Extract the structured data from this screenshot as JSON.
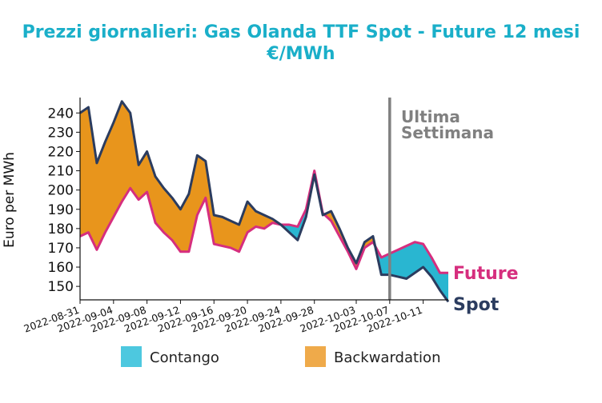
{
  "chart_data": {
    "type": "area",
    "title_line1": "Prezzi giornalieri: Gas Olanda TTF Spot - Future 12 mesi",
    "title_line2": "€/MWh",
    "ylabel": "Euro per MWh",
    "xlabel": "",
    "ylim": [
      143,
      248
    ],
    "yticks": [
      150,
      160,
      170,
      180,
      190,
      200,
      210,
      220,
      230,
      240
    ],
    "x_start": "2022-08-31",
    "x_end": "2022-10-14",
    "xticks": [
      "2022-08-31",
      "2022-09-04",
      "2022-09-08",
      "2022-09-12",
      "2022-09-16",
      "2022-09-20",
      "2022-09-24",
      "2022-09-28",
      "2022-10-03",
      "2022-10-07",
      "2022-10-11"
    ],
    "x": [
      "2022-08-31",
      "2022-09-01",
      "2022-09-02",
      "2022-09-03",
      "2022-09-04",
      "2022-09-05",
      "2022-09-06",
      "2022-09-07",
      "2022-09-08",
      "2022-09-09",
      "2022-09-10",
      "2022-09-11",
      "2022-09-12",
      "2022-09-13",
      "2022-09-14",
      "2022-09-15",
      "2022-09-16",
      "2022-09-17",
      "2022-09-18",
      "2022-09-19",
      "2022-09-20",
      "2022-09-21",
      "2022-09-22",
      "2022-09-23",
      "2022-09-24",
      "2022-09-25",
      "2022-09-26",
      "2022-09-27",
      "2022-09-28",
      "2022-09-29",
      "2022-09-30",
      "2022-10-01",
      "2022-10-02",
      "2022-10-03",
      "2022-10-04",
      "2022-10-05",
      "2022-10-06",
      "2022-10-07",
      "2022-10-08",
      "2022-10-09",
      "2022-10-10",
      "2022-10-11",
      "2022-10-12",
      "2022-10-13",
      "2022-10-14"
    ],
    "series": [
      {
        "name": "Spot",
        "color": "#2b3c5f",
        "values": [
          240,
          243,
          214,
          225,
          235,
          246,
          240,
          213,
          220,
          207,
          201,
          196,
          190,
          198,
          218,
          215,
          187,
          186,
          184,
          182,
          194,
          189,
          187,
          185,
          182,
          178,
          174,
          186,
          208,
          187,
          189,
          180,
          170,
          162,
          173,
          176,
          156,
          156,
          155,
          154,
          157,
          160,
          155,
          148,
          142
        ]
      },
      {
        "name": "Future",
        "color": "#d62e7e",
        "values": [
          176,
          178,
          169,
          178,
          186,
          194,
          201,
          195,
          199,
          183,
          178,
          174,
          168,
          168,
          187,
          196,
          172,
          171,
          170,
          168,
          178,
          181,
          180,
          183,
          182,
          182,
          181,
          190,
          210,
          188,
          184,
          176,
          168,
          159,
          170,
          173,
          165,
          167,
          169,
          171,
          173,
          172,
          165,
          157,
          157
        ]
      }
    ],
    "fills": {
      "contango": {
        "label": "Contango",
        "color": "#29b6d1"
      },
      "backwardation": {
        "label": "Backwardation",
        "color": "#e8951c"
      }
    },
    "legend": {
      "placement": "bottom",
      "items": [
        {
          "label": "Contango",
          "color": "#4dc8df"
        },
        {
          "label": "Backwardation",
          "color": "#efaa4a"
        }
      ]
    },
    "annotation": {
      "text_line1": "Ultima",
      "text_line2": "Settimana",
      "x": "2022-10-07",
      "color": "#808080"
    },
    "series_labels": {
      "future": "Future",
      "spot": "Spot"
    },
    "grid": false
  }
}
